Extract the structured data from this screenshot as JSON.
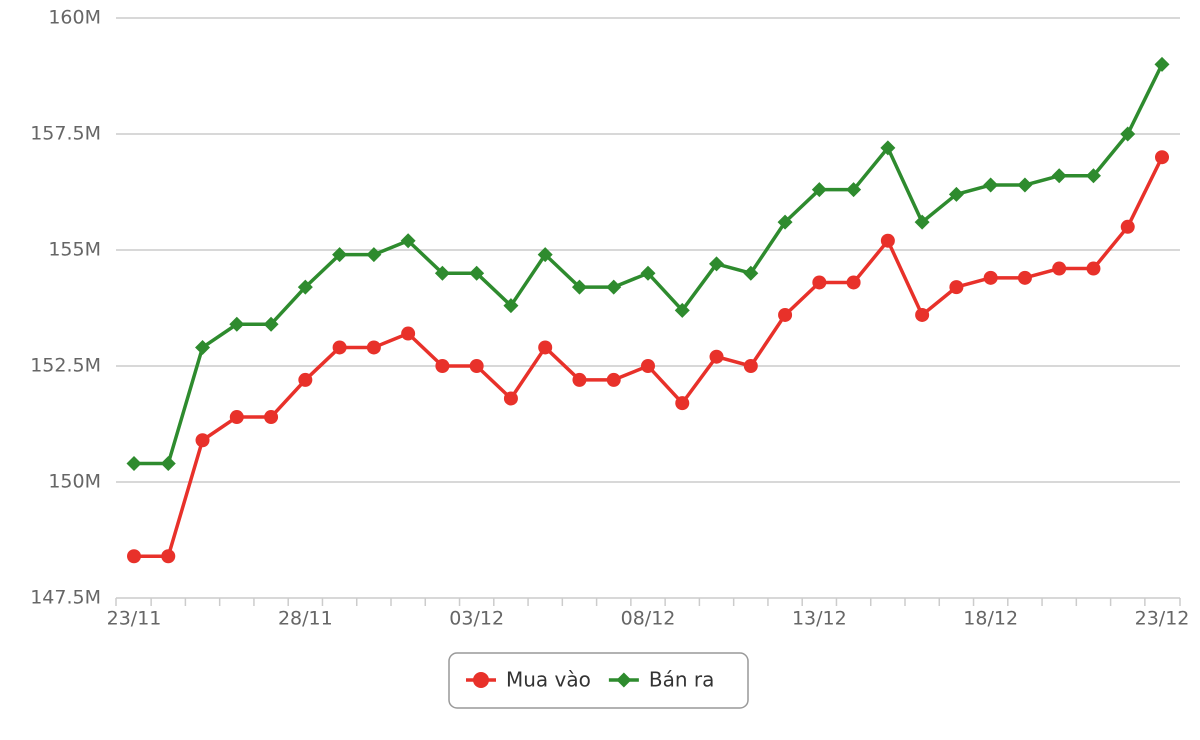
{
  "chart_data": {
    "type": "line",
    "categories": [
      "23/11",
      null,
      null,
      null,
      null,
      "28/11",
      null,
      null,
      null,
      null,
      "03/12",
      null,
      null,
      null,
      null,
      "08/12",
      null,
      null,
      null,
      null,
      "13/12",
      null,
      null,
      null,
      null,
      "18/12",
      null,
      null,
      null,
      null,
      "23/12"
    ],
    "series": [
      {
        "name": "Mua vào",
        "color": "#e8312a",
        "marker": "circle",
        "values": [
          148400000,
          148400000,
          150900000,
          151400000,
          151400000,
          152200000,
          152900000,
          152900000,
          153200000,
          152500000,
          152500000,
          151800000,
          152900000,
          152200000,
          152200000,
          152500000,
          151700000,
          152700000,
          152500000,
          153600000,
          154300000,
          154300000,
          155200000,
          153600000,
          154200000,
          154400000,
          154400000,
          154600000,
          154600000,
          155500000,
          157000000
        ]
      },
      {
        "name": "Bán ra",
        "color": "#2e8b2e",
        "marker": "diamond",
        "values": [
          150400000,
          150400000,
          152900000,
          153400000,
          153400000,
          154200000,
          154900000,
          154900000,
          155200000,
          154500000,
          154500000,
          153800000,
          154900000,
          154200000,
          154200000,
          154500000,
          153700000,
          154700000,
          154500000,
          155600000,
          156300000,
          156300000,
          157200000,
          155600000,
          156200000,
          156400000,
          156400000,
          156600000,
          156600000,
          157500000,
          159000000
        ]
      }
    ],
    "ylim": [
      147500000,
      160000000
    ],
    "yticks": [
      {
        "value": 147500000,
        "label": "147.5M"
      },
      {
        "value": 150000000,
        "label": "150M"
      },
      {
        "value": 152500000,
        "label": "152.5M"
      },
      {
        "value": 155000000,
        "label": "155M"
      },
      {
        "value": 157500000,
        "label": "157.5M"
      },
      {
        "value": 160000000,
        "label": "160M"
      }
    ],
    "grid": true,
    "legend": "bottom"
  }
}
